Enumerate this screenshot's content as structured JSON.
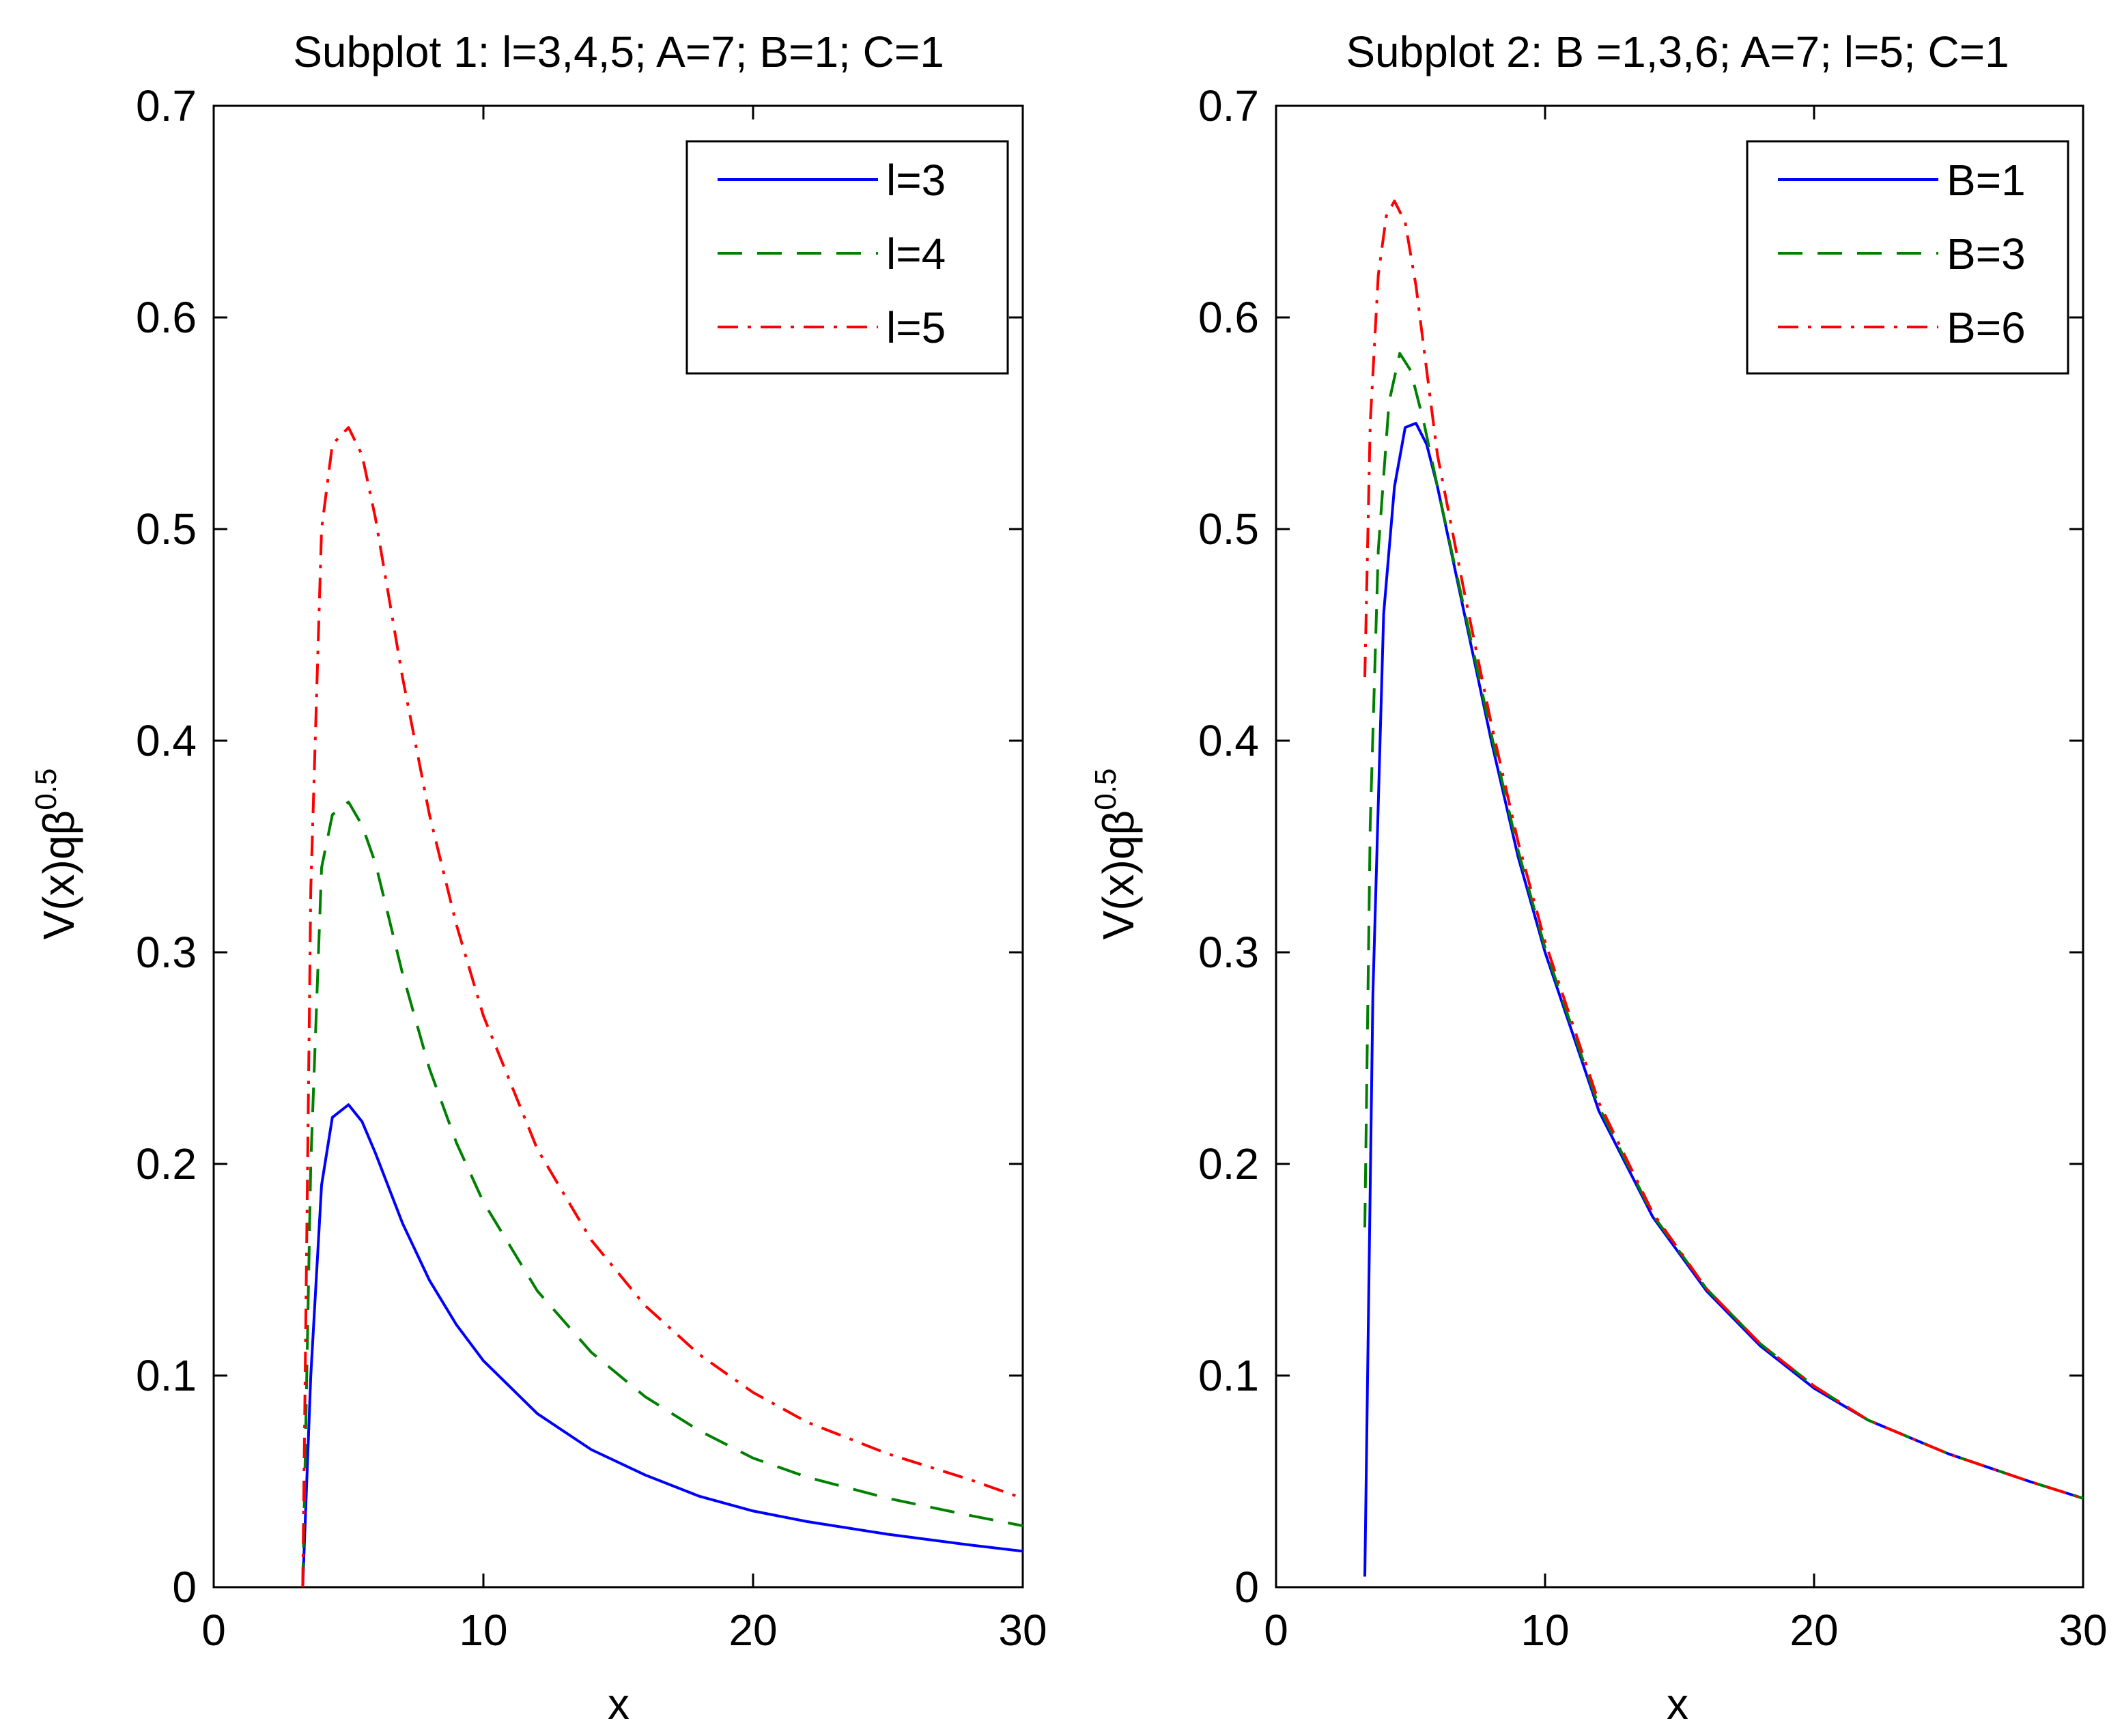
{
  "chart_data": [
    {
      "type": "line",
      "title": "Subplot 1: l=3,4,5; A=7; B=1; C=1",
      "xlabel": "x",
      "ylabel": "V(x)qβ",
      "ylabel_sup": "0.5",
      "xlim": [
        0,
        30
      ],
      "ylim": [
        0,
        0.7
      ],
      "xticks": [
        0,
        10,
        20,
        30
      ],
      "xtick_labels": [
        "0",
        "10",
        "20",
        "30"
      ],
      "yticks": [
        0,
        0.1,
        0.2,
        0.3,
        0.4,
        0.5,
        0.6,
        0.7
      ],
      "ytick_labels": [
        "0",
        "0.1",
        "0.2",
        "0.3",
        "0.4",
        "0.5",
        "0.6",
        "0.7"
      ],
      "legend_position": "top-right",
      "x": [
        3.3,
        3.6,
        4.0,
        4.4,
        5.0,
        5.5,
        6.0,
        7.0,
        8.0,
        9.0,
        10.0,
        12.0,
        14.0,
        16.0,
        18.0,
        20.0,
        22.0,
        25.0,
        28.0,
        30.0
      ],
      "series": [
        {
          "name": "l=3",
          "color": "#0000ff",
          "dash": "solid",
          "values": [
            0.0,
            0.1,
            0.19,
            0.222,
            0.228,
            0.22,
            0.205,
            0.172,
            0.145,
            0.124,
            0.107,
            0.082,
            0.065,
            0.053,
            0.043,
            0.036,
            0.031,
            0.025,
            0.02,
            0.017
          ]
        },
        {
          "name": "l=4",
          "color": "#008000",
          "dash": "dashed",
          "values": [
            0.0,
            0.2,
            0.34,
            0.365,
            0.371,
            0.36,
            0.342,
            0.29,
            0.245,
            0.21,
            0.182,
            0.14,
            0.111,
            0.09,
            0.074,
            0.061,
            0.052,
            0.042,
            0.034,
            0.029
          ]
        },
        {
          "name": "l=5",
          "color": "#ff0000",
          "dash": "dashdot",
          "values": [
            0.0,
            0.33,
            0.5,
            0.54,
            0.548,
            0.535,
            0.505,
            0.43,
            0.365,
            0.313,
            0.27,
            0.207,
            0.164,
            0.133,
            0.11,
            0.092,
            0.078,
            0.063,
            0.051,
            0.042
          ]
        }
      ]
    },
    {
      "type": "line",
      "title": "Subplot 2: B =1,3,6; A=7; l=5; C=1",
      "xlabel": "x",
      "ylabel": "V(x)qβ",
      "ylabel_sup": "0.5",
      "xlim": [
        0,
        30
      ],
      "ylim": [
        0,
        0.7
      ],
      "xticks": [
        0,
        10,
        20,
        30
      ],
      "xtick_labels": [
        "0",
        "10",
        "20",
        "30"
      ],
      "yticks": [
        0,
        0.1,
        0.2,
        0.3,
        0.4,
        0.5,
        0.6,
        0.7
      ],
      "ytick_labels": [
        "0",
        "0.1",
        "0.2",
        "0.3",
        "0.4",
        "0.5",
        "0.6",
        "0.7"
      ],
      "legend_position": "top-right",
      "series": [
        {
          "name": "B=1",
          "color": "#0000ff",
          "dash": "solid",
          "x": [
            3.3,
            3.6,
            4.0,
            4.4,
            4.8,
            5.2,
            5.6,
            6.0,
            7.0,
            8.0,
            9.0,
            10.0,
            12.0,
            14.0,
            16.0,
            18.0,
            20.0,
            22.0,
            25.0,
            28.0,
            30.0
          ],
          "values": [
            0.005,
            0.28,
            0.46,
            0.52,
            0.548,
            0.55,
            0.54,
            0.52,
            0.46,
            0.4,
            0.345,
            0.3,
            0.225,
            0.175,
            0.14,
            0.114,
            0.094,
            0.079,
            0.063,
            0.05,
            0.042
          ]
        },
        {
          "name": "B=3",
          "color": "#008000",
          "dash": "dashed",
          "x": [
            3.3,
            3.5,
            3.8,
            4.2,
            4.6,
            5.0,
            5.5,
            6.0,
            7.0,
            8.0,
            9.0,
            10.0,
            12.0,
            14.0,
            16.0,
            18.0,
            20.0,
            22.0,
            25.0,
            28.0,
            30.0
          ],
          "values": [
            0.17,
            0.36,
            0.49,
            0.56,
            0.583,
            0.575,
            0.55,
            0.52,
            0.462,
            0.403,
            0.348,
            0.302,
            0.227,
            0.176,
            0.141,
            0.115,
            0.095,
            0.079,
            0.063,
            0.05,
            0.042
          ]
        },
        {
          "name": "B=6",
          "color": "#ff0000",
          "dash": "dashdot",
          "x": [
            3.3,
            3.5,
            3.8,
            4.1,
            4.4,
            4.8,
            5.2,
            5.6,
            6.0,
            7.0,
            8.0,
            9.0,
            10.0,
            12.0,
            14.0,
            16.0,
            18.0,
            20.0,
            22.0,
            25.0,
            28.0,
            30.0
          ],
          "values": [
            0.43,
            0.55,
            0.62,
            0.648,
            0.655,
            0.645,
            0.615,
            0.575,
            0.535,
            0.47,
            0.408,
            0.352,
            0.305,
            0.229,
            0.177,
            0.141,
            0.115,
            0.095,
            0.079,
            0.063,
            0.05,
            0.042
          ]
        }
      ]
    }
  ]
}
